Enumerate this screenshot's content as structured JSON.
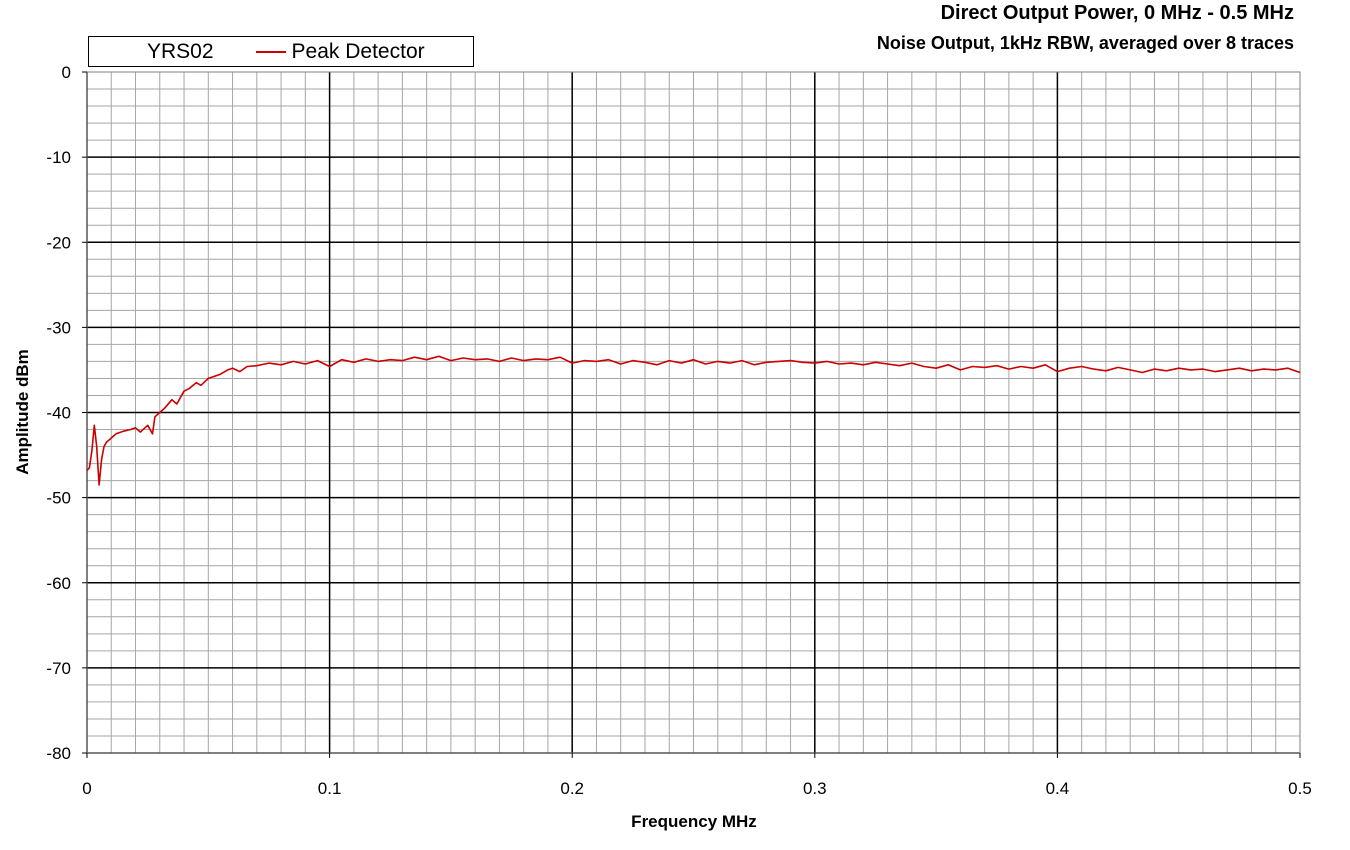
{
  "chart_data": {
    "type": "line",
    "title": "Direct Output Power, 0 MHz - 0.5 MHz",
    "subtitle": "Noise Output, 1kHz RBW, averaged over 8 traces",
    "xlabel": "Frequency MHz",
    "ylabel": "Amplitude dBm",
    "xlim": [
      0,
      0.5
    ],
    "ylim": [
      -80,
      0
    ],
    "xticks": [
      "0",
      "0.1",
      "0.2",
      "0.3",
      "0.4",
      "0.5"
    ],
    "yticks": [
      "0",
      "-10",
      "-20",
      "-30",
      "-40",
      "-50",
      "-60",
      "-70",
      "-80"
    ],
    "grid": true,
    "legend": {
      "group": "YRS02",
      "placement": "top-left"
    },
    "series": [
      {
        "name": "Peak Detector",
        "color": "#cc0000",
        "x": [
          0,
          0.001,
          0.002,
          0.003,
          0.004,
          0.005,
          0.006,
          0.007,
          0.008,
          0.01,
          0.012,
          0.015,
          0.018,
          0.02,
          0.022,
          0.025,
          0.027,
          0.028,
          0.03,
          0.032,
          0.035,
          0.037,
          0.04,
          0.042,
          0.045,
          0.047,
          0.05,
          0.052,
          0.055,
          0.058,
          0.06,
          0.063,
          0.066,
          0.07,
          0.075,
          0.08,
          0.085,
          0.09,
          0.095,
          0.1,
          0.105,
          0.11,
          0.115,
          0.12,
          0.125,
          0.13,
          0.135,
          0.14,
          0.145,
          0.15,
          0.155,
          0.16,
          0.165,
          0.17,
          0.175,
          0.18,
          0.185,
          0.19,
          0.195,
          0.2,
          0.205,
          0.21,
          0.215,
          0.22,
          0.225,
          0.23,
          0.235,
          0.24,
          0.245,
          0.25,
          0.255,
          0.26,
          0.265,
          0.27,
          0.275,
          0.28,
          0.285,
          0.29,
          0.295,
          0.3,
          0.305,
          0.31,
          0.315,
          0.32,
          0.325,
          0.33,
          0.335,
          0.34,
          0.345,
          0.35,
          0.355,
          0.36,
          0.365,
          0.37,
          0.375,
          0.38,
          0.385,
          0.39,
          0.395,
          0.4,
          0.405,
          0.41,
          0.415,
          0.42,
          0.425,
          0.43,
          0.435,
          0.44,
          0.445,
          0.45,
          0.455,
          0.46,
          0.465,
          0.47,
          0.475,
          0.48,
          0.485,
          0.49,
          0.495,
          0.5
        ],
        "y": [
          -46.8,
          -46.5,
          -44.5,
          -41.5,
          -44.0,
          -48.5,
          -45.5,
          -44.0,
          -43.5,
          -43.0,
          -42.5,
          -42.2,
          -42.0,
          -41.8,
          -42.3,
          -41.5,
          -42.5,
          -40.5,
          -40.0,
          -39.5,
          -38.5,
          -39.0,
          -37.5,
          -37.2,
          -36.5,
          -36.8,
          -36.0,
          -35.8,
          -35.5,
          -35.0,
          -34.8,
          -35.2,
          -34.6,
          -34.5,
          -34.2,
          -34.4,
          -34.0,
          -34.3,
          -33.9,
          -34.6,
          -33.8,
          -34.1,
          -33.7,
          -34.0,
          -33.8,
          -33.9,
          -33.5,
          -33.8,
          -33.4,
          -33.9,
          -33.6,
          -33.8,
          -33.7,
          -34.0,
          -33.6,
          -33.9,
          -33.7,
          -33.8,
          -33.5,
          -34.2,
          -33.9,
          -34.0,
          -33.8,
          -34.3,
          -33.9,
          -34.1,
          -34.4,
          -33.9,
          -34.2,
          -33.8,
          -34.3,
          -34.0,
          -34.2,
          -33.9,
          -34.4,
          -34.1,
          -34.0,
          -33.9,
          -34.1,
          -34.2,
          -34.0,
          -34.3,
          -34.2,
          -34.4,
          -34.1,
          -34.3,
          -34.5,
          -34.2,
          -34.6,
          -34.8,
          -34.4,
          -35.0,
          -34.6,
          -34.7,
          -34.5,
          -34.9,
          -34.6,
          -34.8,
          -34.4,
          -35.2,
          -34.8,
          -34.6,
          -34.9,
          -35.1,
          -34.7,
          -35.0,
          -35.3,
          -34.9,
          -35.1,
          -34.8,
          -35.0,
          -34.9,
          -35.2,
          -35.0,
          -34.8,
          -35.1,
          -34.9,
          -35.0,
          -34.8,
          -35.3
        ]
      }
    ]
  }
}
